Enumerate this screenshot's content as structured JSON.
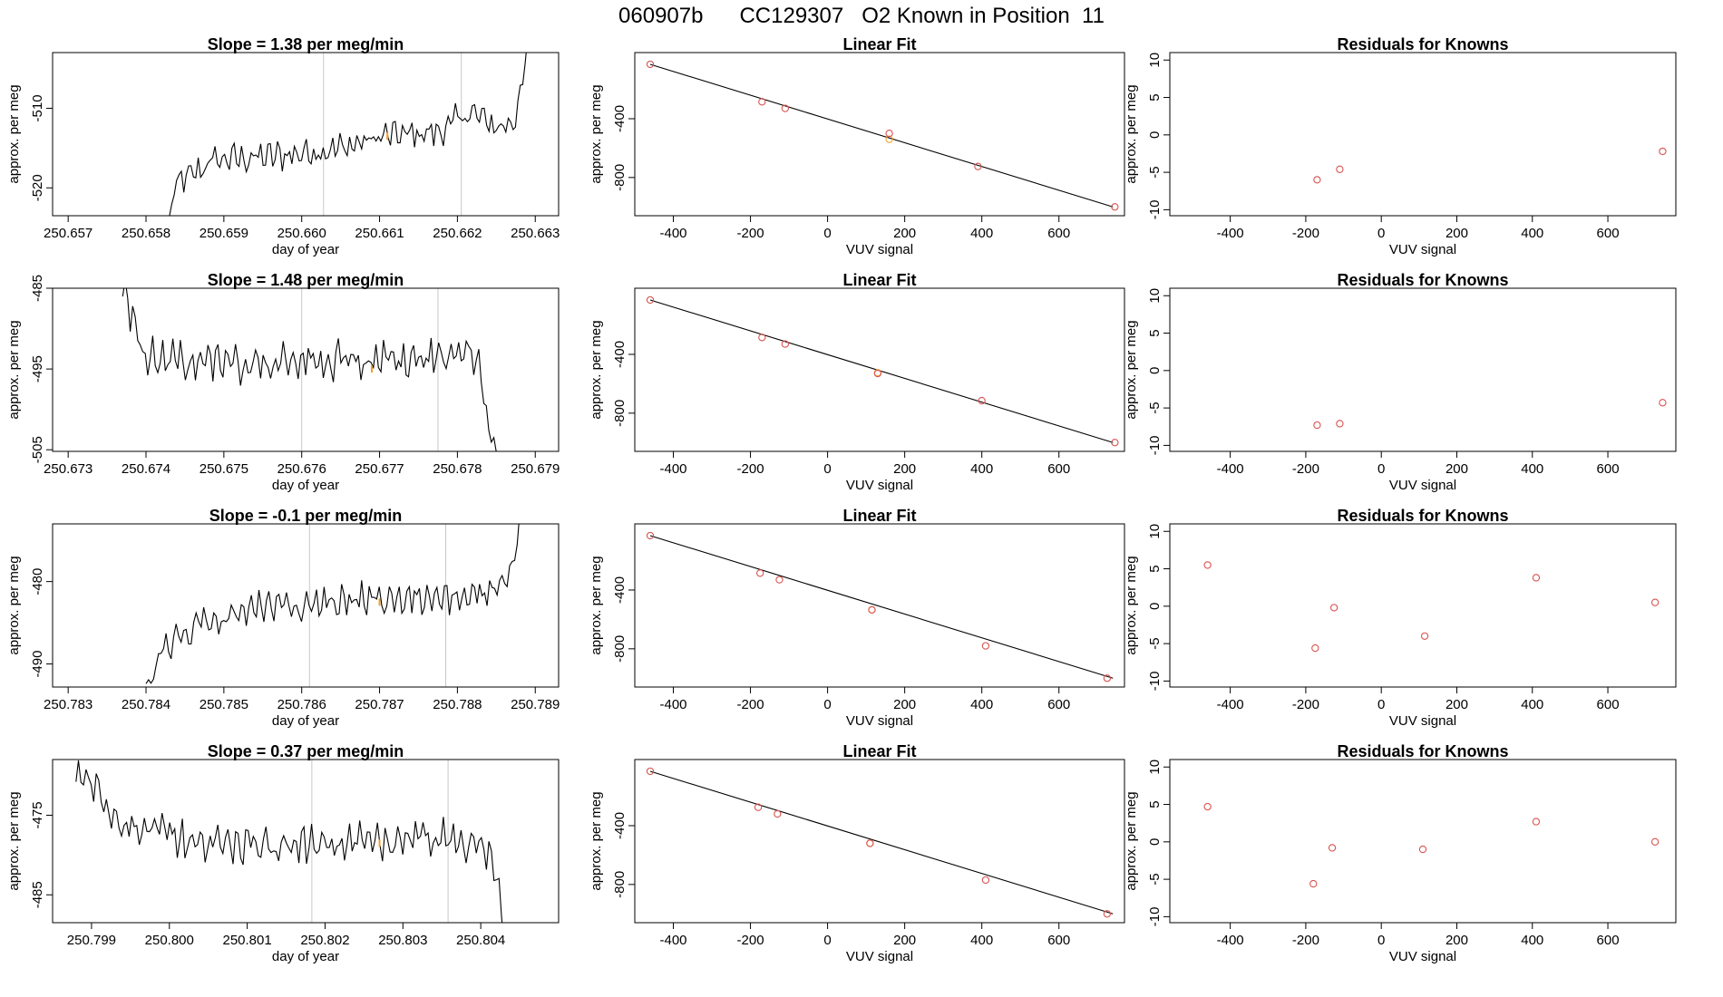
{
  "page_title": "060907b      CC129307   O2 Known in Position  11",
  "colors": {
    "trace": "#000000",
    "points": "#d9534f",
    "highlight": "#f0a030",
    "vline": "#c8c8c8",
    "frame": "#000000"
  },
  "chart_data": [
    {
      "id": "r0-series",
      "type": "line",
      "title": "Slope =  1.38  per meg/min",
      "xlabel": "day of year",
      "ylabel": "approx. per meg",
      "xlim": [
        250.6568,
        250.6633
      ],
      "ylim": [
        -523.5,
        -503
      ],
      "xticks": [
        "250.657",
        "250.658",
        "250.659",
        "250.660",
        "250.661",
        "250.662",
        "250.663"
      ],
      "yticks": [
        -520,
        -510
      ],
      "vlines": [
        250.66028,
        250.66205
      ],
      "highlight_point": [
        250.6611,
        -513.5
      ],
      "start_x": 250.6583,
      "end_x": 250.6629,
      "n_points": 150,
      "shape": [
        [
          0,
          -524
        ],
        [
          0.02,
          -519.5
        ],
        [
          0.08,
          -518
        ],
        [
          0.12,
          -516.5
        ],
        [
          0.3,
          -516
        ],
        [
          0.48,
          -515
        ],
        [
          0.6,
          -513.5
        ],
        [
          0.75,
          -513
        ],
        [
          0.84,
          -510.5
        ],
        [
          0.92,
          -512.5
        ],
        [
          0.97,
          -511
        ],
        [
          1.0,
          -503
        ]
      ],
      "noise_amp": 1.8
    },
    {
      "id": "r0-fit",
      "type": "scatter",
      "title": "Linear Fit",
      "xlabel": "VUV signal",
      "ylabel": "approx. per meg",
      "xlim": [
        -500,
        770
      ],
      "ylim": [
        -1060,
        50
      ],
      "xticks": [
        -400,
        -200,
        0,
        200,
        400,
        600
      ],
      "yticks": [
        -800,
        -400
      ],
      "line": [
        [
          -460,
          -30
        ],
        [
          740,
          -1000
        ]
      ],
      "points": [
        [
          -460,
          -30
        ],
        [
          -170,
          -285
        ],
        [
          -110,
          -330
        ],
        [
          160,
          -500
        ],
        [
          390,
          -725
        ],
        [
          745,
          -1000
        ]
      ],
      "highlight_points": [
        [
          160,
          -540
        ]
      ]
    },
    {
      "id": "r0-resid",
      "type": "scatter",
      "title": "Residuals for Knowns",
      "xlabel": "VUV signal",
      "ylabel": "approx. per meg",
      "xlim": [
        -560,
        780
      ],
      "ylim": [
        -10.8,
        11
      ],
      "xticks": [
        -400,
        -200,
        0,
        200,
        400,
        600
      ],
      "yticks": [
        -10,
        -5,
        0,
        5,
        10
      ],
      "points": [
        [
          -170,
          -6.0
        ],
        [
          -110,
          -4.6
        ],
        [
          745,
          -2.2
        ]
      ]
    },
    {
      "id": "r1-series",
      "type": "line",
      "title": "Slope =  1.48  per meg/min",
      "xlabel": "day of year",
      "ylabel": "approx. per meg",
      "xlim": [
        250.6728,
        250.6793
      ],
      "ylim": [
        -505.2,
        -485
      ],
      "xticks": [
        "250.673",
        "250.674",
        "250.675",
        "250.676",
        "250.677",
        "250.678",
        "250.679"
      ],
      "yticks": [
        -505,
        -495,
        -485
      ],
      "vlines": [
        250.676,
        250.67775
      ],
      "highlight_point": [
        250.6769,
        -495
      ],
      "start_x": 250.6737,
      "end_x": 250.6785,
      "n_points": 150,
      "shape": [
        [
          0,
          -485
        ],
        [
          0.05,
          -493
        ],
        [
          0.3,
          -494.5
        ],
        [
          0.6,
          -494
        ],
        [
          0.8,
          -493.5
        ],
        [
          0.95,
          -493.5
        ],
        [
          1.0,
          -506
        ]
      ],
      "noise_amp": 2.2
    },
    {
      "id": "r1-fit",
      "type": "scatter",
      "title": "Linear Fit",
      "xlabel": "VUV signal",
      "ylabel": "approx. per meg",
      "xlim": [
        -500,
        770
      ],
      "ylim": [
        -1060,
        50
      ],
      "xticks": [
        -400,
        -200,
        0,
        200,
        400,
        600
      ],
      "yticks": [
        -800,
        -400
      ],
      "line": [
        [
          -460,
          -30
        ],
        [
          740,
          -1000
        ]
      ],
      "points": [
        [
          -460,
          -30
        ],
        [
          -170,
          -285
        ],
        [
          -110,
          -330
        ],
        [
          130,
          -530
        ],
        [
          400,
          -715
        ],
        [
          745,
          -1000
        ]
      ],
      "highlight_points": [
        [
          130,
          -525
        ]
      ]
    },
    {
      "id": "r1-resid",
      "type": "scatter",
      "title": "Residuals for Knowns",
      "xlabel": "VUV signal",
      "ylabel": "approx. per meg",
      "xlim": [
        -560,
        780
      ],
      "ylim": [
        -10.8,
        11
      ],
      "xticks": [
        -400,
        -200,
        0,
        200,
        400,
        600
      ],
      "yticks": [
        -10,
        -5,
        0,
        5,
        10
      ],
      "points": [
        [
          -170,
          -7.3
        ],
        [
          -110,
          -7.1
        ],
        [
          745,
          -4.3
        ]
      ]
    },
    {
      "id": "r2-series",
      "type": "line",
      "title": "Slope =  -0.1  per meg/min",
      "xlabel": "day of year",
      "ylabel": "approx. per meg",
      "xlim": [
        250.7828,
        250.7893
      ],
      "ylim": [
        -492.8,
        -473
      ],
      "xticks": [
        "250.783",
        "250.784",
        "250.785",
        "250.786",
        "250.787",
        "250.788",
        "250.789"
      ],
      "yticks": [
        -490,
        -480
      ],
      "vlines": [
        250.7861,
        250.78785
      ],
      "highlight_point": [
        250.787,
        -482.5
      ],
      "start_x": 250.784,
      "end_x": 250.7888,
      "n_points": 150,
      "shape": [
        [
          0,
          -493
        ],
        [
          0.05,
          -488
        ],
        [
          0.15,
          -485
        ],
        [
          0.3,
          -483
        ],
        [
          0.6,
          -482
        ],
        [
          0.8,
          -482
        ],
        [
          0.9,
          -481.5
        ],
        [
          0.97,
          -480
        ],
        [
          1.0,
          -473
        ]
      ],
      "noise_amp": 1.8
    },
    {
      "id": "r2-fit",
      "type": "scatter",
      "title": "Linear Fit",
      "xlabel": "VUV signal",
      "ylabel": "approx. per meg",
      "xlim": [
        -500,
        770
      ],
      "ylim": [
        -1060,
        50
      ],
      "xticks": [
        -400,
        -200,
        0,
        200,
        400,
        600
      ],
      "yticks": [
        -800,
        -400
      ],
      "line": [
        [
          -460,
          -30
        ],
        [
          740,
          -1000
        ]
      ],
      "points": [
        [
          -460,
          -30
        ],
        [
          -175,
          -285
        ],
        [
          -125,
          -330
        ],
        [
          115,
          -535
        ],
        [
          410,
          -780
        ],
        [
          725,
          -1000
        ]
      ],
      "highlight_points": [
        [
          115,
          -535
        ]
      ]
    },
    {
      "id": "r2-resid",
      "type": "scatter",
      "title": "Residuals for Knowns",
      "xlabel": "VUV signal",
      "ylabel": "approx. per meg",
      "xlim": [
        -560,
        780
      ],
      "ylim": [
        -10.8,
        11
      ],
      "xticks": [
        -400,
        -200,
        0,
        200,
        400,
        600
      ],
      "yticks": [
        -10,
        -5,
        0,
        5,
        10
      ],
      "points": [
        [
          -460,
          5.5
        ],
        [
          -175,
          -5.6
        ],
        [
          -125,
          -0.2
        ],
        [
          115,
          -4.0
        ],
        [
          410,
          3.8
        ],
        [
          725,
          0.5
        ]
      ]
    },
    {
      "id": "r3-series",
      "type": "line",
      "title": "Slope =  0.37  per meg/min",
      "xlabel": "day of year",
      "ylabel": "approx. per meg",
      "xlim": [
        250.7985,
        250.805
      ],
      "ylim": [
        -488.5,
        -468
      ],
      "xticks": [
        "250.799",
        "250.800",
        "250.801",
        "250.802",
        "250.803",
        "250.804"
      ],
      "yticks": [
        -485,
        -475
      ],
      "vlines": [
        250.80183,
        250.80358
      ],
      "highlight_point": [
        250.8027,
        -478.5
      ],
      "start_x": 250.7988,
      "end_x": 250.8043,
      "n_points": 170,
      "shape": [
        [
          0,
          -470
        ],
        [
          0.05,
          -472
        ],
        [
          0.12,
          -476
        ],
        [
          0.3,
          -478.5
        ],
        [
          0.5,
          -479
        ],
        [
          0.7,
          -478
        ],
        [
          0.9,
          -478
        ],
        [
          0.97,
          -480
        ],
        [
          1.0,
          -489
        ]
      ],
      "noise_amp": 2.2
    },
    {
      "id": "r3-fit",
      "type": "scatter",
      "title": "Linear Fit",
      "xlabel": "VUV signal",
      "ylabel": "approx. per meg",
      "xlim": [
        -500,
        770
      ],
      "ylim": [
        -1060,
        50
      ],
      "xticks": [
        -400,
        -200,
        0,
        200,
        400,
        600
      ],
      "yticks": [
        -800,
        -400
      ],
      "line": [
        [
          -460,
          -30
        ],
        [
          740,
          -1000
        ]
      ],
      "points": [
        [
          -460,
          -30
        ],
        [
          -180,
          -275
        ],
        [
          -130,
          -320
        ],
        [
          110,
          -520
        ],
        [
          410,
          -770
        ],
        [
          725,
          -1000
        ]
      ],
      "highlight_points": [
        [
          110,
          -520
        ]
      ]
    },
    {
      "id": "r3-resid",
      "type": "scatter",
      "title": "Residuals for Knowns",
      "xlabel": "VUV signal",
      "ylabel": "approx. per meg",
      "xlim": [
        -560,
        780
      ],
      "ylim": [
        -10.8,
        11
      ],
      "xticks": [
        -400,
        -200,
        0,
        200,
        400,
        600
      ],
      "yticks": [
        -10,
        -5,
        0,
        5,
        10
      ],
      "points": [
        [
          -460,
          4.7
        ],
        [
          -180,
          -5.6
        ],
        [
          -130,
          -0.8
        ],
        [
          110,
          -1.0
        ],
        [
          410,
          2.7
        ],
        [
          725,
          0.0
        ]
      ]
    }
  ]
}
